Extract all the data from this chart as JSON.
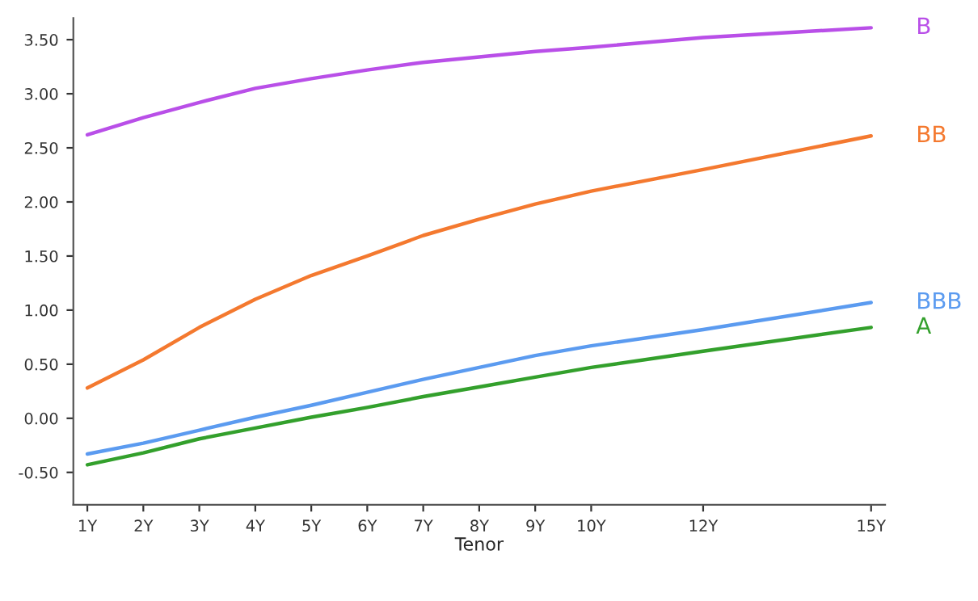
{
  "chart_data": {
    "type": "line",
    "xlabel": "Tenor",
    "x": [
      1,
      2,
      3,
      4,
      5,
      6,
      7,
      8,
      9,
      10,
      12,
      15
    ],
    "xlim": [
      0.75,
      15.25
    ],
    "xticks": [
      {
        "value": 1,
        "label": "1Y"
      },
      {
        "value": 2,
        "label": "2Y"
      },
      {
        "value": 3,
        "label": "3Y"
      },
      {
        "value": 4,
        "label": "4Y"
      },
      {
        "value": 5,
        "label": "5Y"
      },
      {
        "value": 6,
        "label": "6Y"
      },
      {
        "value": 7,
        "label": "7Y"
      },
      {
        "value": 8,
        "label": "8Y"
      },
      {
        "value": 9,
        "label": "9Y"
      },
      {
        "value": 10,
        "label": "10Y"
      },
      {
        "value": 12,
        "label": "12Y"
      },
      {
        "value": 15,
        "label": "15Y"
      }
    ],
    "ylim": [
      -0.8,
      3.7
    ],
    "yticks": [
      {
        "value": -0.5,
        "label": "-0.50"
      },
      {
        "value": 0,
        "label": "0.00"
      },
      {
        "value": 0.5,
        "label": "0.50"
      },
      {
        "value": 1,
        "label": "1.00"
      },
      {
        "value": 1.5,
        "label": "1.50"
      },
      {
        "value": 2,
        "label": "2.00"
      },
      {
        "value": 2.5,
        "label": "2.50"
      },
      {
        "value": 3,
        "label": "3.00"
      },
      {
        "value": 3.5,
        "label": "3.50"
      }
    ],
    "grid": false,
    "legend": false,
    "marker": "none",
    "line_style": "solid",
    "series": [
      {
        "name": "B",
        "color": "#b94fe8",
        "values": [
          2.62,
          2.78,
          2.92,
          3.05,
          3.14,
          3.22,
          3.29,
          3.34,
          3.39,
          3.43,
          3.52,
          3.61
        ]
      },
      {
        "name": "BB",
        "color": "#f4792f",
        "values": [
          0.28,
          0.54,
          0.84,
          1.1,
          1.32,
          1.5,
          1.69,
          1.84,
          1.98,
          2.1,
          2.3,
          2.61
        ]
      },
      {
        "name": "BBB",
        "color": "#5b9bf0",
        "values": [
          -0.33,
          -0.23,
          -0.11,
          0.01,
          0.12,
          0.24,
          0.36,
          0.47,
          0.58,
          0.67,
          0.82,
          1.07
        ]
      },
      {
        "name": "A",
        "color": "#33a02c",
        "values": [
          -0.43,
          -0.32,
          -0.19,
          -0.09,
          0.01,
          0.1,
          0.2,
          0.29,
          0.38,
          0.47,
          0.62,
          0.84
        ]
      }
    ]
  }
}
